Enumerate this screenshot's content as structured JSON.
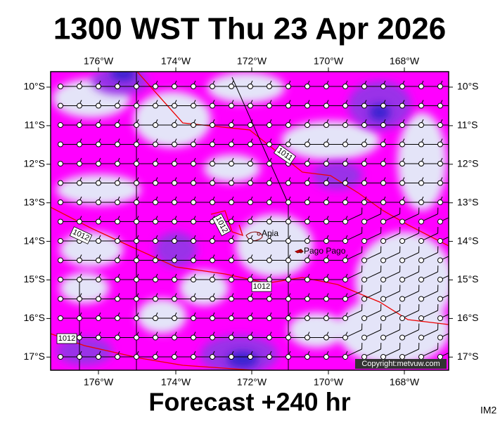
{
  "title": "1300 WST Thu 23 Apr 2026",
  "footer": "Forecast +240 hr",
  "corner_label": "IM2",
  "copyright": "Copyright:metvuw.com",
  "map": {
    "longitude_labels": [
      "176°W",
      "174°W",
      "172°W",
      "170°W",
      "168°W"
    ],
    "latitude_labels": [
      "10°S",
      "11°S",
      "12°S",
      "13°S",
      "14°S",
      "15°S",
      "16°S",
      "17°S"
    ],
    "places": [
      "Apia",
      "Pago Pago"
    ],
    "isobar_labels": [
      "1011",
      "1012",
      "1012",
      "1012",
      "1012"
    ]
  }
}
